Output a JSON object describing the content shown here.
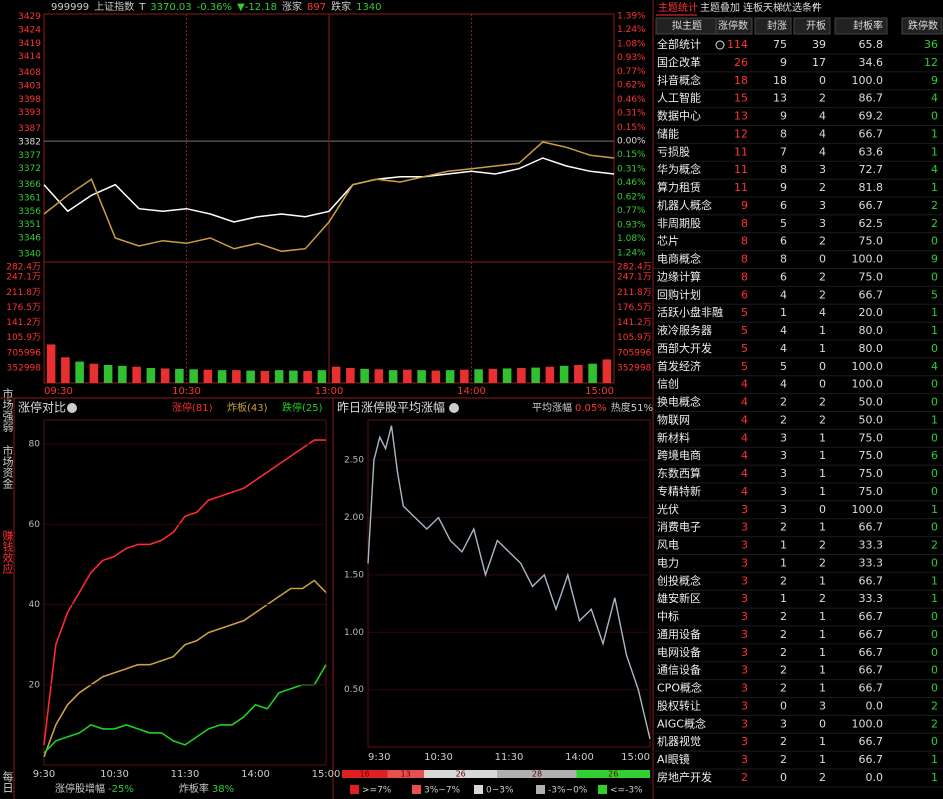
{
  "index_header": {
    "code": "999999",
    "name": "上证指数",
    "flag": "T",
    "price": "3370.03",
    "change_pct": "-0.36%",
    "change": "▼-12.18",
    "up_label": "涨家",
    "up_count": "897",
    "down_label": "跌家",
    "down_count": "1340"
  },
  "price_chart": {
    "type": "line",
    "x": [
      0,
      10,
      20,
      30,
      40,
      50,
      60,
      70,
      80,
      90,
      100,
      110,
      120,
      130,
      140,
      150,
      160,
      170,
      180,
      190,
      200,
      210,
      220,
      230,
      240
    ],
    "xlim": [
      0,
      240
    ],
    "xticks": [
      {
        "value": 0,
        "label": "09:30"
      },
      {
        "value": 60,
        "label": "10:30"
      },
      {
        "value": 120,
        "label": "13:00"
      },
      {
        "value": 180,
        "label": "14:00"
      },
      {
        "value": 240,
        "label": "15:00"
      }
    ],
    "ylim": [
      3337,
      3430
    ],
    "yticks": [
      3429,
      3424,
      3419,
      3414,
      3408,
      3403,
      3398,
      3393,
      3387,
      3382,
      3377,
      3372,
      3366,
      3361,
      3356,
      3351,
      3346,
      3340
    ],
    "y2lim": [
      -1.34,
      1.41
    ],
    "y2ticks": [
      {
        "value": 1.39,
        "label": "1.39%"
      },
      {
        "value": 1.24,
        "label": "1.24%"
      },
      {
        "value": 1.08,
        "label": "1.08%"
      },
      {
        "value": 0.93,
        "label": "0.93%"
      },
      {
        "value": 0.77,
        "label": "0.77%"
      },
      {
        "value": 0.62,
        "label": "0.62%"
      },
      {
        "value": 0.46,
        "label": "0.46%"
      },
      {
        "value": 0.31,
        "label": "0.31%"
      },
      {
        "value": 0.15,
        "label": "0.15%"
      },
      {
        "value": 0,
        "label": "0.00%"
      },
      {
        "value": -0.15,
        "label": "0.15%"
      },
      {
        "value": -0.31,
        "label": "0.31%"
      },
      {
        "value": -0.46,
        "label": "0.46%"
      },
      {
        "value": -0.62,
        "label": "0.62%"
      },
      {
        "value": -0.77,
        "label": "0.77%"
      },
      {
        "value": -0.93,
        "label": "0.93%"
      },
      {
        "value": -1.08,
        "label": "1.08%"
      },
      {
        "value": -1.24,
        "label": "1.24%"
      }
    ],
    "series": [
      {
        "color": "#ffffff",
        "values": [
          3366,
          3356,
          3362,
          3366,
          3357,
          3356,
          3357,
          3355,
          3352,
          3354,
          3355,
          3354,
          3356,
          3366,
          3368,
          3369,
          3369,
          3370,
          3371,
          3370,
          3372,
          3376,
          3373,
          3371,
          3370
        ]
      },
      {
        "color": "#c8a040",
        "values": [
          3355,
          3362,
          3368,
          3346,
          3343,
          3345,
          3344,
          3346,
          3342,
          3344,
          3341,
          3342,
          3352,
          3366,
          3368,
          3367,
          3369,
          3371,
          3372,
          3373,
          3374,
          3382,
          3380,
          3377,
          3376
        ]
      }
    ]
  },
  "volume_chart": {
    "type": "bar",
    "ylim": [
      0,
      2824000
    ],
    "yticks": [
      {
        "value": 2824000,
        "label": "282.4万"
      },
      {
        "value": 2471000,
        "label": "247.1万"
      },
      {
        "value": 2118000,
        "label": "211.8万"
      },
      {
        "value": 1765000,
        "label": "176.5万"
      },
      {
        "value": 1412000,
        "label": "141.2万"
      },
      {
        "value": 1059000,
        "label": "105.9万"
      },
      705996,
      352998
    ],
    "values": [
      900000,
      600000,
      500000,
      450000,
      420000,
      400000,
      380000,
      350000,
      340000,
      330000,
      320000,
      310000,
      300000,
      300000,
      290000,
      280000,
      300000,
      290000,
      280000,
      300000,
      380000,
      350000,
      330000,
      320000,
      300000,
      310000,
      300000,
      290000,
      300000,
      310000,
      320000,
      330000,
      340000,
      350000,
      360000,
      380000,
      400000,
      420000,
      450000,
      550000
    ],
    "colors": [
      "#e83030",
      "#e83030",
      "#30c030",
      "#e83030",
      "#30c030",
      "#30c030",
      "#e83030",
      "#30c030",
      "#e83030",
      "#30c030",
      "#30c030",
      "#e83030",
      "#30c030",
      "#e83030",
      "#30c030",
      "#e83030",
      "#30c030",
      "#30c030",
      "#e83030",
      "#30c030",
      "#e83030",
      "#e83030",
      "#30c030",
      "#e83030",
      "#30c030",
      "#e83030",
      "#30c030",
      "#e83030",
      "#30c030",
      "#e83030",
      "#30c030",
      "#e83030",
      "#30c030",
      "#e83030",
      "#30c030",
      "#e83030",
      "#30c030",
      "#e83030",
      "#30c030",
      "#e83030"
    ]
  },
  "side_tabs": [
    "市场强弱",
    "市场资金",
    "赚钱效应",
    "每日"
  ],
  "limit_chart": {
    "type": "line",
    "title": "涨停对比",
    "x": [
      0,
      10,
      20,
      30,
      40,
      50,
      60,
      70,
      80,
      90,
      100,
      110,
      120,
      130,
      140,
      150,
      160,
      170,
      180,
      190,
      200,
      210,
      220,
      230,
      240
    ],
    "xlim": [
      0,
      240
    ],
    "xticks": [
      {
        "value": 0,
        "label": "9:30"
      },
      {
        "value": 60,
        "label": "10:30"
      },
      {
        "value": 120,
        "label": "11:30"
      },
      {
        "value": 180,
        "label": "14:00"
      },
      {
        "value": 240,
        "label": "15:00"
      }
    ],
    "ylim": [
      0,
      86
    ],
    "yticks": [
      20,
      40,
      60,
      80
    ],
    "series": [
      {
        "name": "涨停(81)",
        "color": "#ff2a2a",
        "values": [
          5,
          30,
          38,
          43,
          48,
          51,
          52,
          54,
          55,
          55,
          56,
          58,
          62,
          63,
          66,
          67,
          68,
          69,
          71,
          73,
          75,
          77,
          79,
          81,
          81
        ]
      },
      {
        "name": "炸板(43)",
        "color": "#c8a040",
        "values": [
          2,
          10,
          15,
          18,
          20,
          22,
          23,
          24,
          25,
          25,
          26,
          27,
          30,
          31,
          33,
          34,
          35,
          36,
          38,
          40,
          42,
          44,
          44,
          46,
          43
        ]
      },
      {
        "name": "跌停(25)",
        "color": "#20d020",
        "values": [
          3,
          6,
          7,
          8,
          10,
          9,
          9,
          10,
          9,
          8,
          8,
          6,
          5,
          7,
          9,
          10,
          10,
          12,
          15,
          14,
          18,
          19,
          20,
          20,
          25
        ]
      }
    ],
    "footer": {
      "growth_label": "涨停股增幅",
      "growth_value": "-25%",
      "burst_label": "炸板率",
      "burst_value": "38%"
    }
  },
  "avg_chart": {
    "type": "line",
    "title": "昨日涨停股平均涨幅",
    "avg_label": "平均涨幅",
    "avg_value": "0.05%",
    "heat": "热度51%",
    "x": [
      0,
      5,
      10,
      15,
      20,
      25,
      30,
      40,
      50,
      60,
      70,
      80,
      90,
      100,
      110,
      120,
      130,
      140,
      150,
      160,
      170,
      180,
      190,
      200,
      210,
      220,
      230,
      240
    ],
    "xlim": [
      0,
      240
    ],
    "xticks": [
      {
        "value": 0,
        "label": "9:30"
      },
      {
        "value": 60,
        "label": "10:30"
      },
      {
        "value": 120,
        "label": "11:30"
      },
      {
        "value": 180,
        "label": "14:00"
      },
      {
        "value": 240,
        "label": "15:00"
      }
    ],
    "ylim": [
      0,
      2.85
    ],
    "yticks": [
      {
        "value": 2.5,
        "label": "2.50"
      },
      {
        "value": 2,
        "label": "2.00"
      },
      {
        "value": 1.5,
        "label": "1.50"
      },
      {
        "value": 1,
        "label": "1.00"
      },
      {
        "value": 0.5,
        "label": "0.50"
      }
    ],
    "color": "#a8b8c8",
    "values": [
      1.6,
      2.5,
      2.7,
      2.6,
      2.8,
      2.4,
      2.1,
      2.0,
      1.9,
      2.0,
      1.8,
      1.7,
      1.9,
      1.5,
      1.8,
      1.7,
      1.6,
      1.4,
      1.5,
      1.2,
      1.5,
      1.1,
      1.2,
      0.9,
      1.3,
      0.8,
      0.5,
      0.07
    ],
    "distribution": {
      "values": [
        16,
        13,
        26,
        28,
        26
      ],
      "colors": [
        "#e02020",
        "#e85050",
        "#d8d8d8",
        "#b0b0b0",
        "#30d030"
      ],
      "labels": [
        ">=7%",
        "3%~7%",
        "0~3%",
        "-3%~0%",
        "<=-3%"
      ]
    }
  },
  "theme_table": {
    "tabs": [
      "主题统计",
      "主题叠加",
      "连板天梯",
      "优选条件",
      "?"
    ],
    "columns": [
      "拟主题",
      "涨停数",
      "封涨",
      "开板",
      "封板率",
      "跌停数"
    ],
    "rows": [
      [
        "全部统计",
        "114",
        "75",
        "39",
        "65.8",
        "36"
      ],
      [
        "国企改革",
        "26",
        "9",
        "17",
        "34.6",
        "12"
      ],
      [
        "抖音概念",
        "18",
        "18",
        "0",
        "100.0",
        "9"
      ],
      [
        "人工智能",
        "15",
        "13",
        "2",
        "86.7",
        "4"
      ],
      [
        "数据中心",
        "13",
        "9",
        "4",
        "69.2",
        "0"
      ],
      [
        "储能",
        "12",
        "8",
        "4",
        "66.7",
        "1"
      ],
      [
        "亏损股",
        "11",
        "7",
        "4",
        "63.6",
        "1"
      ],
      [
        "华为概念",
        "11",
        "8",
        "3",
        "72.7",
        "4"
      ],
      [
        "算力租赁",
        "11",
        "9",
        "2",
        "81.8",
        "1"
      ],
      [
        "机器人概念",
        "9",
        "6",
        "3",
        "66.7",
        "2"
      ],
      [
        "非周期股",
        "8",
        "5",
        "3",
        "62.5",
        "2"
      ],
      [
        "芯片",
        "8",
        "6",
        "2",
        "75.0",
        "0"
      ],
      [
        "电商概念",
        "8",
        "8",
        "0",
        "100.0",
        "9"
      ],
      [
        "边缘计算",
        "8",
        "6",
        "2",
        "75.0",
        "0"
      ],
      [
        "回购计划",
        "6",
        "4",
        "2",
        "66.7",
        "5"
      ],
      [
        "活跃小盘非融",
        "5",
        "1",
        "4",
        "20.0",
        "1"
      ],
      [
        "液冷服务器",
        "5",
        "4",
        "1",
        "80.0",
        "1"
      ],
      [
        "西部大开发",
        "5",
        "4",
        "1",
        "80.0",
        "0"
      ],
      [
        "首发经济",
        "5",
        "5",
        "0",
        "100.0",
        "4"
      ],
      [
        "信创",
        "4",
        "4",
        "0",
        "100.0",
        "0"
      ],
      [
        "换电概念",
        "4",
        "2",
        "2",
        "50.0",
        "0"
      ],
      [
        "物联网",
        "4",
        "2",
        "2",
        "50.0",
        "1"
      ],
      [
        "新材料",
        "4",
        "3",
        "1",
        "75.0",
        "0"
      ],
      [
        "跨境电商",
        "4",
        "3",
        "1",
        "75.0",
        "6"
      ],
      [
        "东数西算",
        "4",
        "3",
        "1",
        "75.0",
        "0"
      ],
      [
        "专精特新",
        "4",
        "3",
        "1",
        "75.0",
        "0"
      ],
      [
        "光伏",
        "3",
        "3",
        "0",
        "100.0",
        "1"
      ],
      [
        "消费电子",
        "3",
        "2",
        "1",
        "66.7",
        "0"
      ],
      [
        "风电",
        "3",
        "1",
        "2",
        "33.3",
        "2"
      ],
      [
        "电力",
        "3",
        "1",
        "2",
        "33.3",
        "0"
      ],
      [
        "创投概念",
        "3",
        "2",
        "1",
        "66.7",
        "1"
      ],
      [
        "雄安新区",
        "3",
        "1",
        "2",
        "33.3",
        "1"
      ],
      [
        "中标",
        "3",
        "2",
        "1",
        "66.7",
        "0"
      ],
      [
        "通用设备",
        "3",
        "2",
        "1",
        "66.7",
        "0"
      ],
      [
        "电网设备",
        "3",
        "2",
        "1",
        "66.7",
        "0"
      ],
      [
        "通信设备",
        "3",
        "2",
        "1",
        "66.7",
        "0"
      ],
      [
        "CPO概念",
        "3",
        "2",
        "1",
        "66.7",
        "0"
      ],
      [
        "股权转让",
        "3",
        "0",
        "3",
        "0.0",
        "2"
      ],
      [
        "AIGC概念",
        "3",
        "3",
        "0",
        "100.0",
        "2"
      ],
      [
        "机器视觉",
        "3",
        "2",
        "1",
        "66.7",
        "0"
      ],
      [
        "AI眼镜",
        "3",
        "2",
        "1",
        "66.7",
        "1"
      ],
      [
        "房地产开发",
        "2",
        "0",
        "2",
        "0.0",
        "1"
      ]
    ]
  }
}
